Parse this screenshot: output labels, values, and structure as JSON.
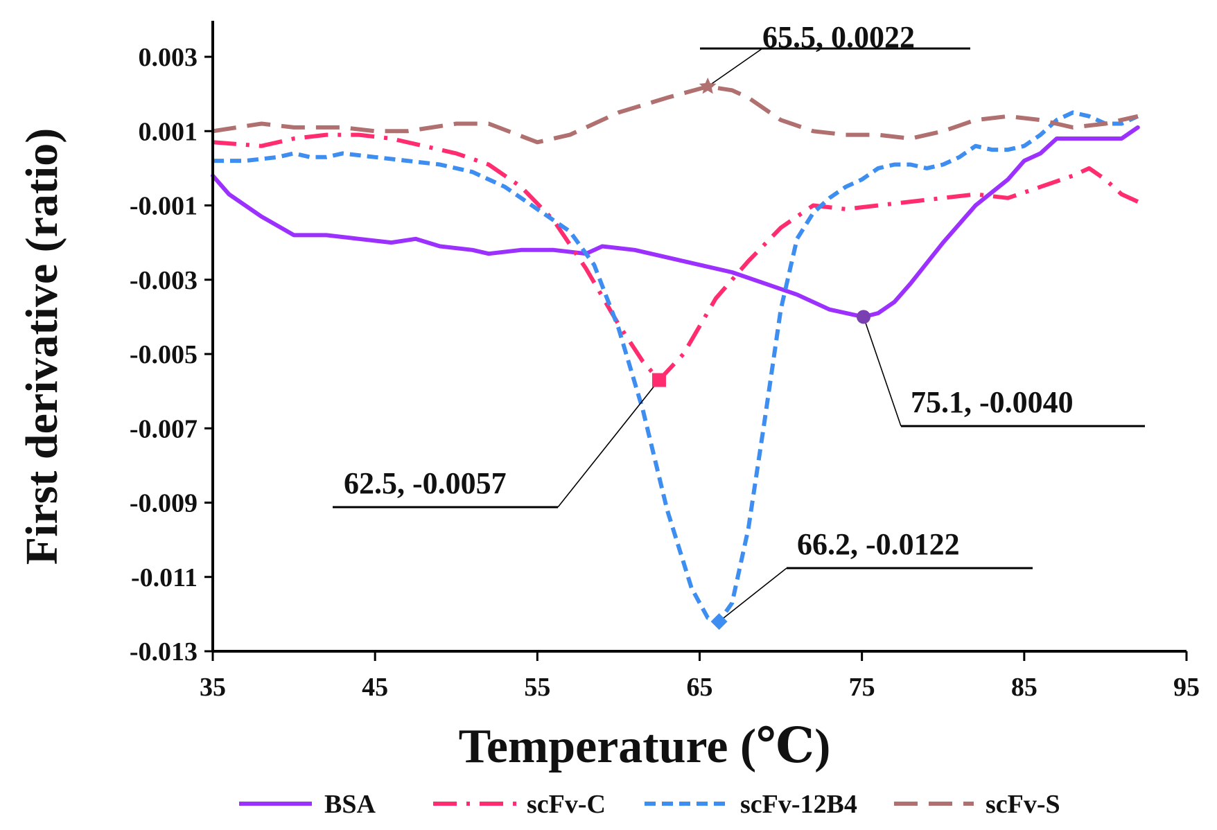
{
  "chart_data": {
    "type": "line",
    "xlabel": "Temperature (℃)",
    "ylabel": "First derivative (ratio)",
    "xlim": [
      35,
      95
    ],
    "ylim": [
      -0.013,
      0.004
    ],
    "xticks": [
      35,
      45,
      55,
      65,
      75,
      85,
      95
    ],
    "xtick_labels": [
      "35",
      "45",
      "55",
      "65",
      "75",
      "85",
      "95"
    ],
    "yticks": [
      0.003,
      0.001,
      -0.001,
      -0.003,
      -0.005,
      -0.007,
      -0.009,
      -0.011,
      -0.013
    ],
    "ytick_labels": [
      "0.003",
      "0.001",
      "-0.001",
      "-0.003",
      "-0.005",
      "-0.007",
      "-0.009",
      "-0.011",
      "-0.013"
    ],
    "legend_position": "bottom",
    "series": [
      {
        "name": "BSA",
        "color": "#9b30ff",
        "style": "solid",
        "x": [
          35,
          36,
          38,
          40,
          42,
          44,
          46,
          47.5,
          49,
          51,
          52,
          54,
          56,
          58,
          59,
          61,
          63,
          65,
          67,
          69,
          71,
          73,
          75.1,
          76,
          77,
          78,
          80,
          82,
          84,
          85,
          86,
          87,
          88,
          89,
          90,
          91,
          92
        ],
        "y": [
          -0.0002,
          -0.0007,
          -0.0013,
          -0.0018,
          -0.0018,
          -0.0019,
          -0.002,
          -0.0019,
          -0.0021,
          -0.0022,
          -0.0023,
          -0.0022,
          -0.0022,
          -0.0023,
          -0.0021,
          -0.0022,
          -0.0024,
          -0.0026,
          -0.0028,
          -0.0031,
          -0.0034,
          -0.0038,
          -0.004,
          -0.0039,
          -0.0036,
          -0.0031,
          -0.002,
          -0.001,
          -0.0003,
          0.0002,
          0.0004,
          0.0008,
          0.0008,
          0.0008,
          0.0008,
          0.0008,
          0.0011
        ]
      },
      {
        "name": "scFv-C",
        "color": "#ff2d6f",
        "style": "dashdot",
        "x": [
          35,
          38,
          40,
          42,
          44,
          46,
          48,
          50,
          52,
          54,
          56,
          58,
          60,
          61.5,
          62.5,
          64,
          66,
          68,
          70,
          72,
          74,
          76,
          78,
          80,
          82,
          84,
          86,
          88,
          89,
          90,
          91,
          92
        ],
        "y": [
          0.0007,
          0.0006,
          0.0008,
          0.0009,
          0.0009,
          0.0008,
          0.0006,
          0.0004,
          0.0001,
          -0.0005,
          -0.0014,
          -0.0027,
          -0.0042,
          -0.0052,
          -0.0057,
          -0.005,
          -0.0035,
          -0.0025,
          -0.0016,
          -0.001,
          -0.0011,
          -0.001,
          -0.0009,
          -0.0008,
          -0.0007,
          -0.0008,
          -0.0005,
          -0.0002,
          0.0,
          -0.0003,
          -0.0007,
          -0.0009
        ]
      },
      {
        "name": "scFv-12B4",
        "color": "#3d8ef0",
        "style": "dashed",
        "x": [
          35,
          37,
          39,
          40,
          41,
          42,
          43,
          45,
          47,
          49,
          51,
          53,
          55,
          57,
          58.5,
          60,
          61.5,
          63,
          64.5,
          65.5,
          66.2,
          67,
          68,
          69,
          70,
          71,
          72,
          73,
          74,
          75,
          76,
          77,
          78,
          79,
          80,
          81,
          82,
          83,
          84,
          85,
          86,
          87,
          88,
          89,
          90,
          91,
          92
        ],
        "y": [
          0.0002,
          0.0002,
          0.0003,
          0.0004,
          0.0003,
          0.0003,
          0.0004,
          0.0003,
          0.0002,
          0.0001,
          -0.0001,
          -0.0005,
          -0.0011,
          -0.0017,
          -0.0026,
          -0.0043,
          -0.0065,
          -0.0092,
          -0.0113,
          -0.0121,
          -0.0122,
          -0.0117,
          -0.0097,
          -0.0068,
          -0.0038,
          -0.0019,
          -0.0012,
          -0.0008,
          -0.0005,
          -0.0003,
          0.0,
          0.0001,
          0.0001,
          0.0,
          0.0001,
          0.0003,
          0.0006,
          0.0005,
          0.0005,
          0.0006,
          0.0009,
          0.0013,
          0.0015,
          0.0014,
          0.0012,
          0.0012,
          0.0014
        ]
      },
      {
        "name": "scFv-S",
        "color": "#b07070",
        "style": "longdash",
        "x": [
          35,
          38,
          40,
          43,
          45,
          47,
          50,
          52,
          55,
          57,
          60,
          63,
          65.5,
          67,
          68,
          70,
          72,
          74,
          76,
          78,
          80,
          82,
          84,
          86,
          88,
          90,
          92
        ],
        "y": [
          0.001,
          0.0012,
          0.0011,
          0.0011,
          0.001,
          0.001,
          0.0012,
          0.0012,
          0.0007,
          0.0009,
          0.0015,
          0.0019,
          0.0022,
          0.0021,
          0.0019,
          0.0013,
          0.001,
          0.0009,
          0.0009,
          0.0008,
          0.001,
          0.0013,
          0.0014,
          0.0013,
          0.0011,
          0.0012,
          0.0014
        ]
      }
    ],
    "annotations": [
      {
        "series": "scFv-S",
        "x": 65.5,
        "y": 0.0022,
        "label": "65.5, 0.0022",
        "marker": "star"
      },
      {
        "series": "scFv-C",
        "x": 62.5,
        "y": -0.0057,
        "label": "62.5, -0.0057",
        "marker": "square"
      },
      {
        "series": "BSA",
        "x": 75.1,
        "y": -0.004,
        "label": "75.1, -0.0040",
        "marker": "circle"
      },
      {
        "series": "scFv-12B4",
        "x": 66.2,
        "y": -0.0122,
        "label": "66.2, -0.0122",
        "marker": "diamond"
      }
    ]
  }
}
